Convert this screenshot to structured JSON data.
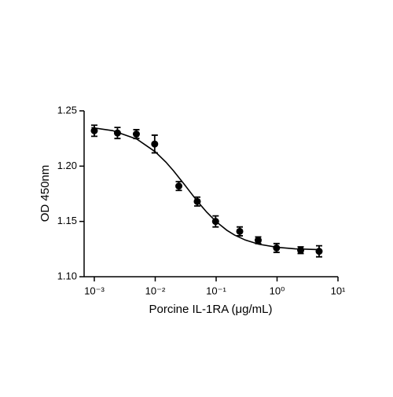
{
  "chart_data": {
    "type": "scatter",
    "x_label": "Porcine IL-1RA (μg/mL)",
    "y_label": "OD 450nm",
    "x": [
      0.001,
      0.0024,
      0.0049,
      0.0098,
      0.0244,
      0.049,
      0.098,
      0.244,
      0.49,
      0.98,
      2.44,
      4.9
    ],
    "values": [
      1.232,
      1.23,
      1.229,
      1.22,
      1.182,
      1.168,
      1.15,
      1.141,
      1.133,
      1.126,
      1.124,
      1.123
    ],
    "errors": [
      0.005,
      0.005,
      0.004,
      0.008,
      0.004,
      0.004,
      0.005,
      0.004,
      0.003,
      0.004,
      0.003,
      0.005
    ],
    "color": "#000000",
    "curve": {
      "x": [
        0.0009,
        0.002,
        0.005,
        0.01,
        0.015,
        0.02,
        0.03,
        0.04,
        0.05,
        0.07,
        0.1,
        0.15,
        0.2,
        0.3,
        0.5,
        1,
        2,
        5
      ],
      "values": [
        1.2349,
        1.2321,
        1.2244,
        1.213,
        1.2036,
        1.1957,
        1.1835,
        1.1746,
        1.1678,
        1.1584,
        1.1498,
        1.142,
        1.1377,
        1.1332,
        1.1294,
        1.1266,
        1.1252,
        1.1245
      ]
    },
    "xscale": "log",
    "xlim": [
      0.00068,
      10
    ],
    "xticks": [
      {
        "value": 0.001,
        "label": "10⁻³"
      },
      {
        "value": 0.01,
        "label": "10⁻²"
      },
      {
        "value": 0.1,
        "label": "10⁻¹"
      },
      {
        "value": 1,
        "label": "10⁰"
      },
      {
        "value": 10,
        "label": "10¹"
      }
    ],
    "ylim": [
      1.1,
      1.25
    ],
    "yticks": [
      {
        "value": 1.1,
        "label": "1.10"
      },
      1.15,
      {
        "value": 1.2,
        "label": "1.20"
      },
      1.25
    ]
  }
}
